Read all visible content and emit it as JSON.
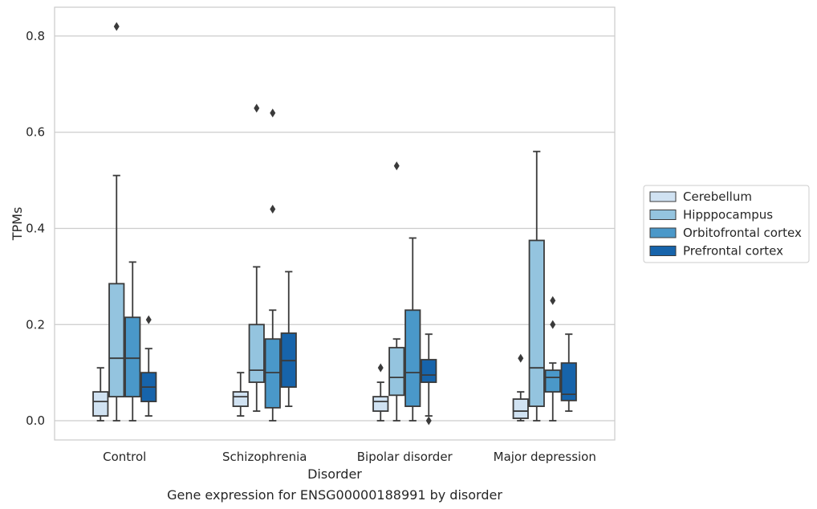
{
  "caption": "Gene expression for ENSG00000188991 by disorder",
  "chart_data": {
    "type": "box",
    "xlabel": "Disorder",
    "ylabel": "TPMs",
    "ylim": [
      -0.04,
      0.86
    ],
    "yticks": [
      0.0,
      0.2,
      0.4,
      0.6,
      0.8
    ],
    "ytick_labels": [
      "0.0",
      "0.2",
      "0.4",
      "0.6",
      "0.8"
    ],
    "grid": "horizontal",
    "legend_position": "right",
    "categories": [
      "Control",
      "Schizophrenia",
      "Bipolar disorder",
      "Major depression"
    ],
    "series": [
      {
        "name": "Cerebellum",
        "color": "#d0e2f2",
        "boxes": [
          {
            "whislo": 0.0,
            "q1": 0.01,
            "med": 0.04,
            "q3": 0.06,
            "whishi": 0.11,
            "fliers": []
          },
          {
            "whislo": 0.01,
            "q1": 0.03,
            "med": 0.05,
            "q3": 0.06,
            "whishi": 0.1,
            "fliers": []
          },
          {
            "whislo": 0.0,
            "q1": 0.02,
            "med": 0.04,
            "q3": 0.05,
            "whishi": 0.08,
            "fliers": [
              0.11
            ]
          },
          {
            "whislo": 0.0,
            "q1": 0.005,
            "med": 0.02,
            "q3": 0.045,
            "whishi": 0.06,
            "fliers": [
              0.13
            ]
          }
        ]
      },
      {
        "name": "Hipppocampus",
        "color": "#94c4df",
        "boxes": [
          {
            "whislo": 0.0,
            "q1": 0.05,
            "med": 0.13,
            "q3": 0.285,
            "whishi": 0.51,
            "fliers": [
              0.82
            ]
          },
          {
            "whislo": 0.02,
            "q1": 0.08,
            "med": 0.105,
            "q3": 0.2,
            "whishi": 0.32,
            "fliers": [
              0.65
            ]
          },
          {
            "whislo": 0.0,
            "q1": 0.053,
            "med": 0.09,
            "q3": 0.152,
            "whishi": 0.17,
            "fliers": [
              0.53
            ]
          },
          {
            "whislo": 0.0,
            "q1": 0.03,
            "med": 0.11,
            "q3": 0.375,
            "whishi": 0.56,
            "fliers": []
          }
        ]
      },
      {
        "name": "Orbitofrontal cortex",
        "color": "#4a98c9",
        "boxes": [
          {
            "whislo": 0.0,
            "q1": 0.05,
            "med": 0.13,
            "q3": 0.215,
            "whishi": 0.33,
            "fliers": []
          },
          {
            "whislo": 0.0,
            "q1": 0.027,
            "med": 0.1,
            "q3": 0.17,
            "whishi": 0.23,
            "fliers": [
              0.64,
              0.44
            ]
          },
          {
            "whislo": 0.0,
            "q1": 0.03,
            "med": 0.1,
            "q3": 0.23,
            "whishi": 0.38,
            "fliers": []
          },
          {
            "whislo": 0.0,
            "q1": 0.06,
            "med": 0.09,
            "q3": 0.105,
            "whishi": 0.12,
            "fliers": [
              0.25,
              0.2
            ]
          }
        ]
      },
      {
        "name": "Prefrontal cortex",
        "color": "#1764ab",
        "boxes": [
          {
            "whislo": 0.01,
            "q1": 0.04,
            "med": 0.07,
            "q3": 0.1,
            "whishi": 0.15,
            "fliers": [
              0.21
            ]
          },
          {
            "whislo": 0.03,
            "q1": 0.07,
            "med": 0.125,
            "q3": 0.182,
            "whishi": 0.31,
            "fliers": []
          },
          {
            "whislo": 0.01,
            "q1": 0.08,
            "med": 0.095,
            "q3": 0.127,
            "whishi": 0.18,
            "fliers": [
              0.0
            ]
          },
          {
            "whislo": 0.02,
            "q1": 0.042,
            "med": 0.055,
            "q3": 0.12,
            "whishi": 0.18,
            "fliers": []
          }
        ]
      }
    ]
  }
}
